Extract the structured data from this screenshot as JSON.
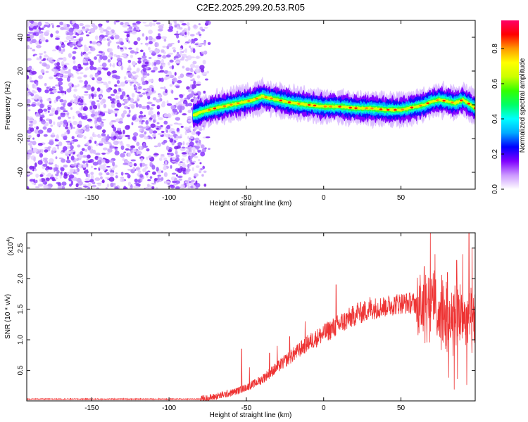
{
  "title": "C2E2.2025.299.20.53.R05",
  "chart_data": [
    {
      "type": "heatmap",
      "title": "C2E2.2025.299.20.53.R05",
      "xlabel": "Height of straight line (km)",
      "ylabel": "Frequency (Hz)",
      "xlim": [
        -192,
        98
      ],
      "ylim": [
        -50,
        50
      ],
      "x_ticks": [
        -150,
        -100,
        -50,
        0,
        50
      ],
      "x_tick_labels": [
        "-150",
        "-100",
        "-50",
        "0",
        "50"
      ],
      "y_ticks": [
        -40,
        -20,
        0,
        20,
        40
      ],
      "y_tick_labels": [
        "-40",
        "-20",
        "0",
        "20",
        "40"
      ],
      "noise_region_x": [
        -192,
        -74
      ],
      "ridge": {
        "x": [
          -84,
          -78,
          -70,
          -60,
          -50,
          -45,
          -40,
          -35,
          -30,
          -20,
          -10,
          0,
          10,
          20,
          30,
          40,
          50,
          55,
          60,
          65,
          70,
          75,
          80,
          85,
          90,
          95,
          98
        ],
        "freq": [
          -6,
          -4,
          -2,
          0,
          2,
          3,
          5,
          4,
          3,
          1,
          0,
          -1,
          -1,
          -2,
          -2,
          -3,
          -3,
          -2,
          -1,
          0,
          2,
          3,
          2,
          1,
          3,
          0,
          -2
        ]
      },
      "colorbar": {
        "label": "Normalized spectral amplitude",
        "range": [
          0.0,
          0.96
        ],
        "ticks": [
          0.0,
          0.2,
          0.4,
          0.6,
          0.8
        ],
        "tick_labels": [
          "0.0",
          "0.2",
          "0.4",
          "0.6",
          "0.8"
        ],
        "colors": [
          "#ffffff",
          "#cc99ff",
          "#7f00ff",
          "#0000ff",
          "#00aaff",
          "#00ffff",
          "#00ff66",
          "#33ff00",
          "#ccff00",
          "#ffff00",
          "#ff9900",
          "#ff0000",
          "#ff0066"
        ]
      }
    },
    {
      "type": "line",
      "xlabel": "Height of straight line (km)",
      "ylabel": "SNR (10 * v/v)",
      "y_multiplier": "(x10",
      "y_multiplier_exp": "4",
      "y_multiplier_close": ")",
      "xlim": [
        -192,
        98
      ],
      "ylim": [
        0,
        2.75
      ],
      "x_ticks": [
        -150,
        -100,
        -50,
        0,
        50
      ],
      "x_tick_labels": [
        "-150",
        "-100",
        "-50",
        "0",
        "50"
      ],
      "y_ticks": [
        0.5,
        1.0,
        1.5,
        2.0,
        2.5
      ],
      "y_tick_labels": [
        "0.5",
        "1.0",
        "1.5",
        "2.0",
        "2.5"
      ],
      "color": "#ee3333",
      "envelope": {
        "x": [
          -192,
          -80,
          -75,
          -70,
          -65,
          -60,
          -55,
          -50,
          -45,
          -40,
          -35,
          -30,
          -20,
          -10,
          0,
          10,
          20,
          30,
          40,
          50,
          55,
          60,
          65,
          70,
          75,
          80,
          85,
          90,
          95,
          98
        ],
        "y": [
          0.03,
          0.03,
          0.04,
          0.07,
          0.1,
          0.13,
          0.17,
          0.22,
          0.28,
          0.35,
          0.45,
          0.55,
          0.75,
          0.95,
          1.1,
          1.25,
          1.4,
          1.5,
          1.55,
          1.6,
          1.6,
          1.6,
          1.62,
          1.6,
          1.45,
          1.3,
          1.35,
          1.4,
          1.3,
          1.15
        ]
      },
      "spikes": [
        {
          "x": -53,
          "y": 0.85
        },
        {
          "x": -48,
          "y": 0.55
        },
        {
          "x": -35,
          "y": 0.78
        },
        {
          "x": -30,
          "y": 0.9
        },
        {
          "x": -22,
          "y": 1.05
        },
        {
          "x": -12,
          "y": 1.3
        },
        {
          "x": 8,
          "y": 1.9
        },
        {
          "x": 22,
          "y": 1.6
        },
        {
          "x": 30,
          "y": 1.7
        },
        {
          "x": 40,
          "y": 1.65
        },
        {
          "x": 65,
          "y": 2.2
        },
        {
          "x": 69,
          "y": 2.75
        },
        {
          "x": 72,
          "y": 2.4
        },
        {
          "x": 80,
          "y": 2.1
        },
        {
          "x": 86,
          "y": 2.3
        },
        {
          "x": 90,
          "y": 2.4
        },
        {
          "x": 94,
          "y": 2.75
        },
        {
          "x": 96,
          "y": 2.5
        }
      ]
    }
  ]
}
